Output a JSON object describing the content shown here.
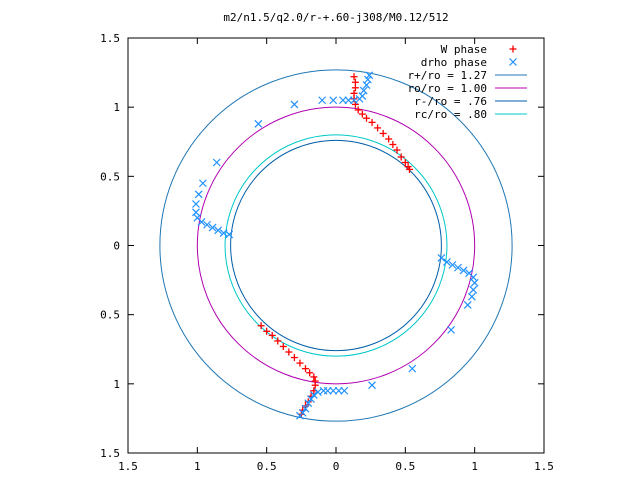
{
  "chart_data": {
    "type": "scatter",
    "title": "m2/n1.5/q2.0/r-+.60-j308/M0.12/512",
    "xlim": [
      -1.5,
      1.5
    ],
    "ylim": [
      -1.5,
      1.5
    ],
    "x_ticks": [
      {
        "value": -1.5,
        "label": "1.5"
      },
      {
        "value": -1.0,
        "label": "1"
      },
      {
        "value": -0.5,
        "label": "0.5"
      },
      {
        "value": 0.0,
        "label": "0"
      },
      {
        "value": 0.5,
        "label": "0.5"
      },
      {
        "value": 1.0,
        "label": "1"
      },
      {
        "value": 1.5,
        "label": "1.5"
      }
    ],
    "y_ticks": [
      {
        "value": 1.5,
        "label": "1.5"
      },
      {
        "value": 1.0,
        "label": "1"
      },
      {
        "value": 0.5,
        "label": "0.5"
      },
      {
        "value": 0.0,
        "label": "0"
      },
      {
        "value": -0.5,
        "label": "0.5"
      },
      {
        "value": -1.0,
        "label": "1"
      },
      {
        "value": -1.5,
        "label": "1.5"
      }
    ],
    "grid": false,
    "legend_position": "top-right",
    "circles": [
      {
        "label": "r+/ro = 1.27",
        "radius": 1.27,
        "color": "#1f77b4"
      },
      {
        "label": "ro/ro = 1.00",
        "radius": 1.0,
        "color": "#b000b0"
      },
      {
        "label": "r-/ro = .76",
        "radius": 0.76,
        "color": "#005ea8"
      },
      {
        "label": "rc/ro = .80",
        "radius": 0.8,
        "color": "#00c8c8"
      }
    ],
    "series": [
      {
        "name": "W phase",
        "marker": "plus",
        "color": "#ff0000",
        "points": [
          [
            0.13,
            1.22
          ],
          [
            0.14,
            1.18
          ],
          [
            0.14,
            1.14
          ],
          [
            0.13,
            1.1
          ],
          [
            0.13,
            1.06
          ],
          [
            0.14,
            1.02
          ],
          [
            0.16,
            0.98
          ],
          [
            0.19,
            0.95
          ],
          [
            0.22,
            0.92
          ],
          [
            0.26,
            0.89
          ],
          [
            0.3,
            0.85
          ],
          [
            0.34,
            0.81
          ],
          [
            0.38,
            0.77
          ],
          [
            0.41,
            0.73
          ],
          [
            0.44,
            0.69
          ],
          [
            0.47,
            0.64
          ],
          [
            0.5,
            0.6
          ],
          [
            0.52,
            0.57
          ],
          [
            0.53,
            0.55
          ],
          [
            -0.54,
            -0.58
          ],
          [
            -0.5,
            -0.62
          ],
          [
            -0.46,
            -0.65
          ],
          [
            -0.42,
            -0.69
          ],
          [
            -0.38,
            -0.73
          ],
          [
            -0.34,
            -0.77
          ],
          [
            -0.3,
            -0.81
          ],
          [
            -0.26,
            -0.85
          ],
          [
            -0.22,
            -0.89
          ],
          [
            -0.19,
            -0.92
          ],
          [
            -0.16,
            -0.95
          ],
          [
            -0.15,
            -0.98
          ],
          [
            -0.15,
            -1.01
          ],
          [
            -0.16,
            -1.05
          ],
          [
            -0.18,
            -1.09
          ],
          [
            -0.2,
            -1.13
          ],
          [
            -0.22,
            -1.16
          ],
          [
            -0.24,
            -1.19
          ],
          [
            -0.25,
            -1.22
          ]
        ]
      },
      {
        "name": "drho phase",
        "marker": "cross",
        "color": "#1e90ff",
        "points": [
          [
            0.24,
            1.23
          ],
          [
            0.23,
            1.2
          ],
          [
            0.22,
            1.16
          ],
          [
            0.2,
            1.12
          ],
          [
            0.19,
            1.08
          ],
          [
            0.17,
            1.06
          ],
          [
            0.13,
            1.05
          ],
          [
            0.09,
            1.05
          ],
          [
            0.05,
            1.05
          ],
          [
            -0.02,
            1.05
          ],
          [
            -0.1,
            1.05
          ],
          [
            -0.3,
            1.02
          ],
          [
            -0.56,
            0.88
          ],
          [
            -0.86,
            0.6
          ],
          [
            -0.96,
            0.45
          ],
          [
            -0.99,
            0.37
          ],
          [
            -1.01,
            0.3
          ],
          [
            -1.01,
            0.24
          ],
          [
            -1.0,
            0.2
          ],
          [
            -0.97,
            0.17
          ],
          [
            -0.93,
            0.15
          ],
          [
            -0.89,
            0.13
          ],
          [
            -0.85,
            0.11
          ],
          [
            -0.81,
            0.09
          ],
          [
            -0.77,
            0.08
          ],
          [
            0.76,
            -0.09
          ],
          [
            0.8,
            -0.12
          ],
          [
            0.84,
            -0.14
          ],
          [
            0.88,
            -0.16
          ],
          [
            0.92,
            -0.18
          ],
          [
            0.96,
            -0.2
          ],
          [
            0.99,
            -0.23
          ],
          [
            1.0,
            -0.27
          ],
          [
            0.99,
            -0.32
          ],
          [
            0.98,
            -0.37
          ],
          [
            0.95,
            -0.43
          ],
          [
            0.83,
            -0.61
          ],
          [
            0.55,
            -0.89
          ],
          [
            0.26,
            -1.01
          ],
          [
            0.06,
            -1.05
          ],
          [
            0.02,
            -1.05
          ],
          [
            -0.02,
            -1.05
          ],
          [
            -0.06,
            -1.05
          ],
          [
            -0.09,
            -1.05
          ],
          [
            -0.13,
            -1.06
          ],
          [
            -0.16,
            -1.08
          ],
          [
            -0.18,
            -1.11
          ],
          [
            -0.2,
            -1.14
          ],
          [
            -0.22,
            -1.18
          ],
          [
            -0.24,
            -1.21
          ],
          [
            -0.26,
            -1.23
          ]
        ]
      }
    ]
  }
}
